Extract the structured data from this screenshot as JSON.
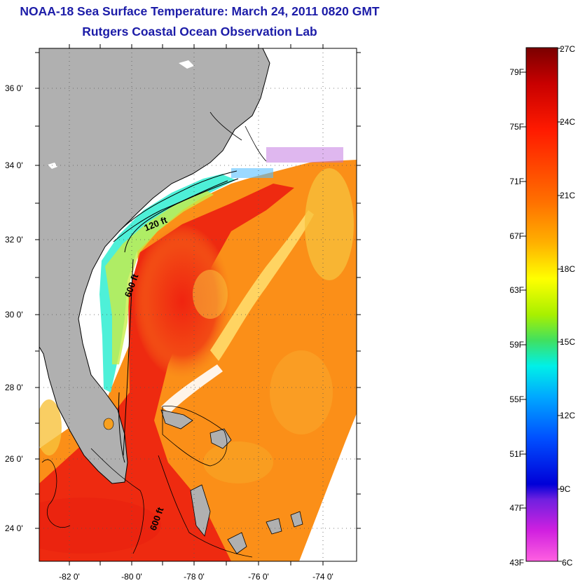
{
  "header": {
    "title": "NOAA-18 Sea Surface Temperature:  March 24, 2011 0820 GMT",
    "subtitle": "Rutgers Coastal Ocean Observation Lab"
  },
  "map": {
    "lat_labels": [
      "36 0'",
      "34 0'",
      "32 0'",
      "30 0'",
      "28 0'",
      "26 0'",
      "24 0'"
    ],
    "lon_labels": [
      "-82 0'",
      "-80 0'",
      "-78 0'",
      "-76 0'",
      "-74 0'"
    ],
    "contour_labels": [
      "120 ft",
      "600 ft",
      "600 ft"
    ],
    "colors": {
      "land": "#b0b0b0",
      "warm": "#ee2a10",
      "mid": "#fb8f18",
      "cool": "#f5d63a",
      "cold": "#4ef0d8",
      "cloud": "#ffffff"
    }
  },
  "legend": {
    "fahrenheit_labels": [
      "79F",
      "75F",
      "71F",
      "67F",
      "63F",
      "59F",
      "55F",
      "51F",
      "47F",
      "43F"
    ],
    "celsius_labels": [
      "27C",
      "24C",
      "21C",
      "18C",
      "15C",
      "12C",
      "9C",
      "6C"
    ]
  }
}
